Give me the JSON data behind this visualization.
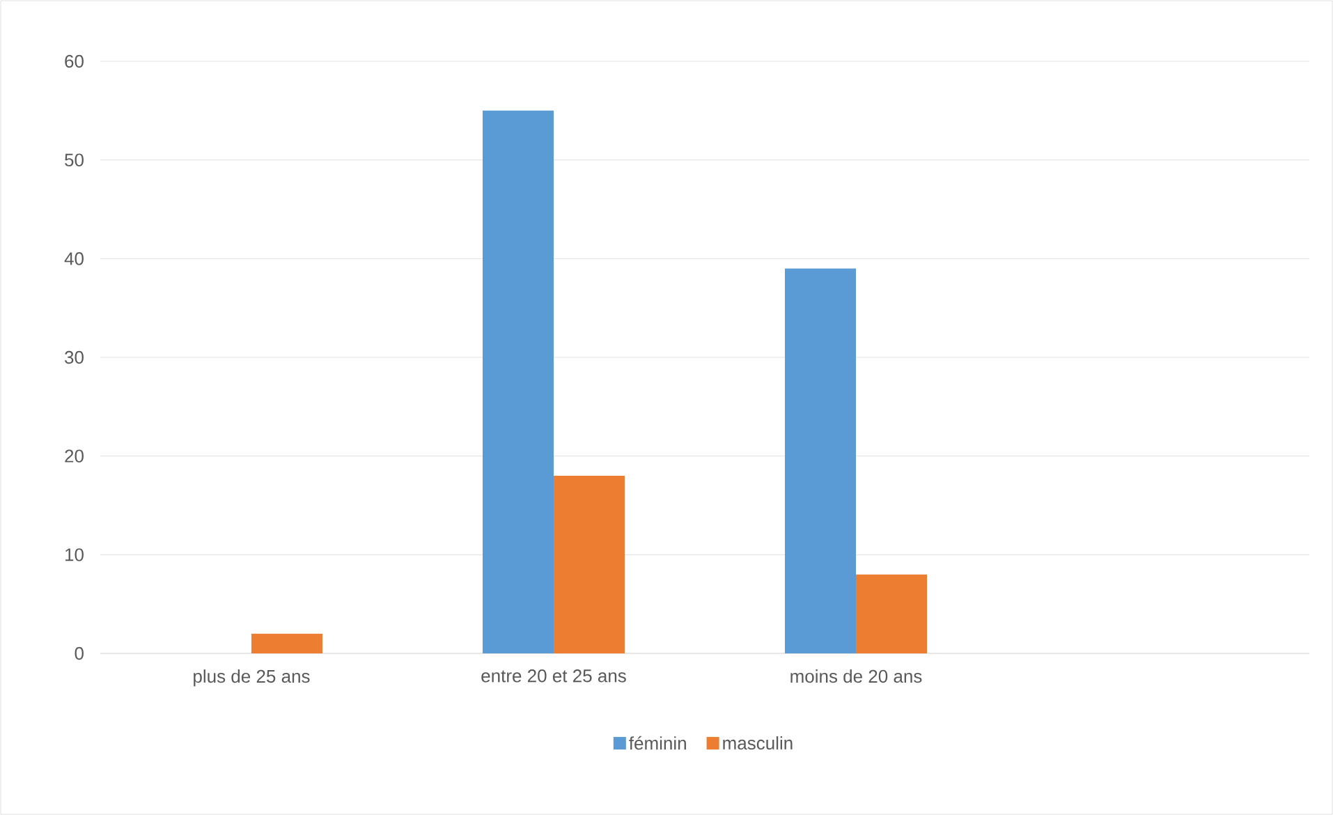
{
  "chart_data": {
    "type": "bar",
    "categories": [
      "plus de 25 ans",
      "entre 20 et 25 ans",
      "moins de 20 ans",
      null
    ],
    "series": [
      {
        "name": "féminin",
        "color": "#5b9bd5",
        "values": [
          null,
          55,
          39,
          null
        ]
      },
      {
        "name": "masculin",
        "color": "#ed7d31",
        "values": [
          2,
          18,
          8,
          null
        ]
      }
    ],
    "ylim": [
      0,
      60
    ],
    "yticks": [
      0,
      10,
      20,
      30,
      40,
      50,
      60
    ],
    "grid": "y",
    "legend": "bottom"
  }
}
